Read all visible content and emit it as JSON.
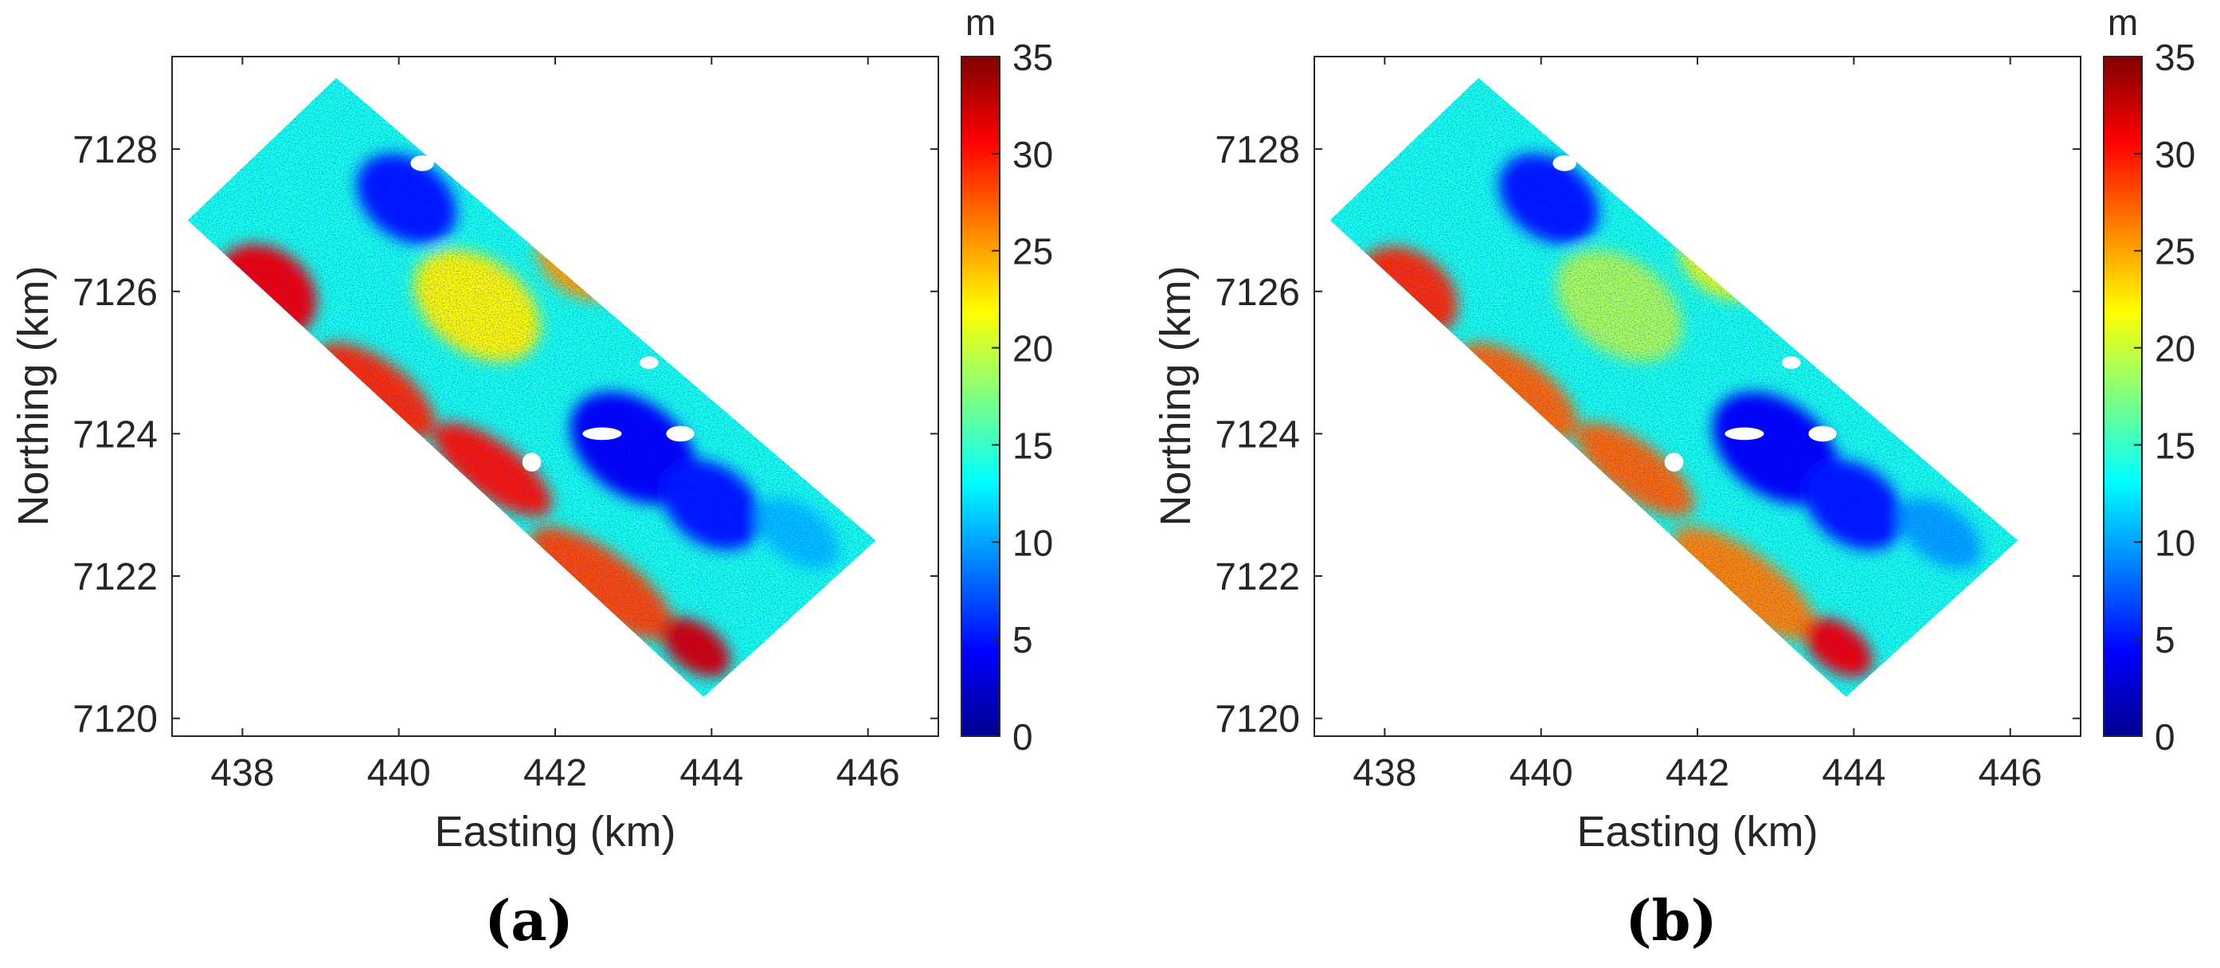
{
  "chart_data": [
    {
      "type": "heatmap",
      "panel_label": "(a)",
      "xlabel": "Easting (km)",
      "ylabel": "Northing (km)",
      "xlim": [
        437.1,
        446.9
      ],
      "ylim": [
        7119.75,
        7129.3
      ],
      "xticks": [
        "438",
        "440",
        "442",
        "444",
        "446"
      ],
      "yticks": [
        "7120",
        "7122",
        "7124",
        "7126",
        "7128"
      ],
      "grid": false,
      "colorbar": {
        "unit": "m",
        "range": [
          0,
          35
        ],
        "colormap": "jet",
        "ticks": [
          "0",
          "5",
          "10",
          "15",
          "20",
          "25",
          "30",
          "35"
        ]
      },
      "data_extent_corners_km": [
        [
          437.3,
          7127.0
        ],
        [
          439.2,
          7129.0
        ],
        [
          446.1,
          7122.5
        ],
        [
          443.9,
          7120.3
        ]
      ],
      "regions": [
        {
          "x": 438.3,
          "y": 7126.0,
          "rx": 0.7,
          "ry": 0.55,
          "rot": 36,
          "value": 31
        },
        {
          "x": 439.7,
          "y": 7124.6,
          "rx": 0.9,
          "ry": 0.4,
          "rot": 36,
          "value": 29
        },
        {
          "x": 441.2,
          "y": 7123.5,
          "rx": 0.9,
          "ry": 0.35,
          "rot": 36,
          "value": 30
        },
        {
          "x": 442.6,
          "y": 7121.9,
          "rx": 1.1,
          "ry": 0.4,
          "rot": 36,
          "value": 28
        },
        {
          "x": 443.8,
          "y": 7121.0,
          "rx": 0.5,
          "ry": 0.3,
          "rot": 36,
          "value": 32
        },
        {
          "x": 441.0,
          "y": 7125.8,
          "rx": 0.9,
          "ry": 0.6,
          "rot": 36,
          "value": 22
        },
        {
          "x": 442.3,
          "y": 7126.4,
          "rx": 0.6,
          "ry": 0.4,
          "rot": 36,
          "value": 25
        },
        {
          "x": 443.0,
          "y": 7123.8,
          "rx": 0.9,
          "ry": 0.6,
          "rot": 36,
          "value": 4
        },
        {
          "x": 444.0,
          "y": 7123.0,
          "rx": 0.7,
          "ry": 0.5,
          "rot": 36,
          "value": 5
        },
        {
          "x": 440.1,
          "y": 7127.3,
          "rx": 0.7,
          "ry": 0.5,
          "rot": 36,
          "value": 5
        },
        {
          "x": 445.1,
          "y": 7122.6,
          "rx": 0.6,
          "ry": 0.35,
          "rot": 36,
          "value": 11
        }
      ]
    },
    {
      "type": "heatmap",
      "panel_label": "(b)",
      "xlabel": "Easting (km)",
      "ylabel": "Northing (km)",
      "xlim": [
        437.1,
        446.9
      ],
      "ylim": [
        7119.75,
        7129.3
      ],
      "xticks": [
        "438",
        "440",
        "442",
        "444",
        "446"
      ],
      "yticks": [
        "7120",
        "7122",
        "7124",
        "7126",
        "7128"
      ],
      "grid": false,
      "colorbar": {
        "unit": "m",
        "range": [
          0,
          35
        ],
        "colormap": "jet",
        "ticks": [
          "0",
          "5",
          "10",
          "15",
          "20",
          "25",
          "30",
          "35"
        ]
      },
      "data_extent_corners_km": [
        [
          437.3,
          7127.0
        ],
        [
          439.2,
          7129.0
        ],
        [
          446.1,
          7122.5
        ],
        [
          443.9,
          7120.3
        ]
      ],
      "regions": [
        {
          "x": 438.3,
          "y": 7126.0,
          "rx": 0.7,
          "ry": 0.5,
          "rot": 36,
          "value": 29
        },
        {
          "x": 439.7,
          "y": 7124.6,
          "rx": 0.9,
          "ry": 0.4,
          "rot": 36,
          "value": 27
        },
        {
          "x": 441.2,
          "y": 7123.5,
          "rx": 0.9,
          "ry": 0.35,
          "rot": 36,
          "value": 27
        },
        {
          "x": 442.6,
          "y": 7121.9,
          "rx": 1.1,
          "ry": 0.4,
          "rot": 36,
          "value": 26
        },
        {
          "x": 443.8,
          "y": 7121.0,
          "rx": 0.5,
          "ry": 0.3,
          "rot": 36,
          "value": 31
        },
        {
          "x": 441.0,
          "y": 7125.8,
          "rx": 0.9,
          "ry": 0.6,
          "rot": 36,
          "value": 19
        },
        {
          "x": 442.3,
          "y": 7126.4,
          "rx": 0.6,
          "ry": 0.4,
          "rot": 36,
          "value": 21
        },
        {
          "x": 443.0,
          "y": 7123.8,
          "rx": 0.9,
          "ry": 0.6,
          "rot": 36,
          "value": 4
        },
        {
          "x": 444.0,
          "y": 7123.0,
          "rx": 0.7,
          "ry": 0.5,
          "rot": 36,
          "value": 5
        },
        {
          "x": 440.1,
          "y": 7127.3,
          "rx": 0.7,
          "ry": 0.5,
          "rot": 36,
          "value": 5
        },
        {
          "x": 445.1,
          "y": 7122.6,
          "rx": 0.6,
          "ry": 0.35,
          "rot": 36,
          "value": 10
        }
      ]
    }
  ],
  "colors": {
    "background": "#ffffff",
    "axis": "#262626",
    "panel_label": "#000000"
  }
}
